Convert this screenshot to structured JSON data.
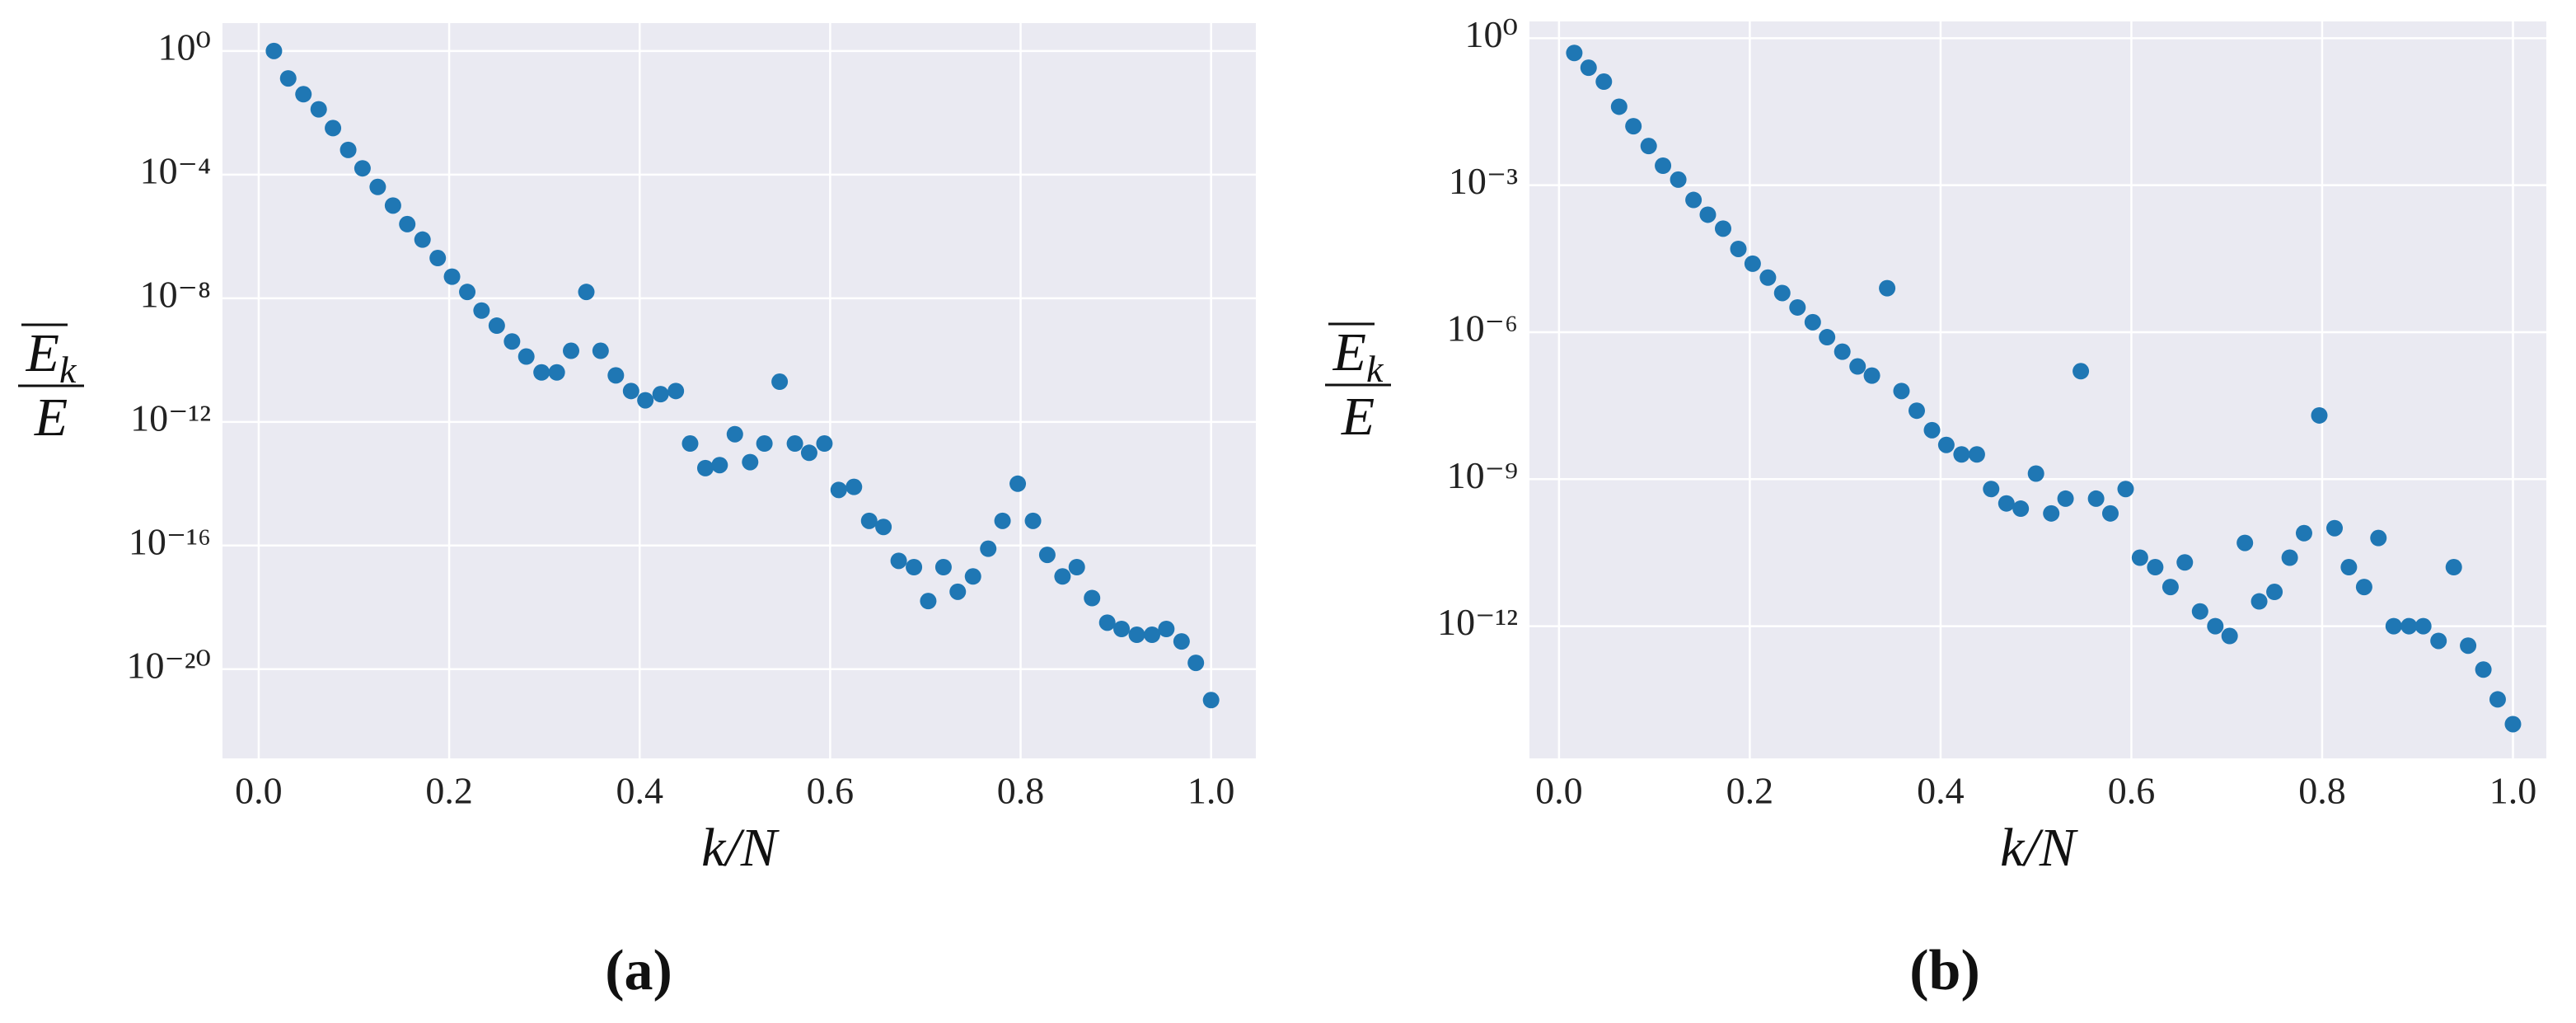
{
  "chart_data": [
    {
      "type": "scatter",
      "caption": "(a)",
      "xlabel": "k/N",
      "ylabel": {
        "numerator": "E",
        "subscript": "k",
        "denominator": "E"
      },
      "log_y": true,
      "grid": true,
      "color": "#1f77b4",
      "xlim": [
        -0.038,
        1.047
      ],
      "ylim": [
        8,
        1.3e-23
      ],
      "xticks": [
        {
          "value": 0,
          "label": "0.0"
        },
        0.2,
        0.4,
        0.6,
        0.8,
        {
          "value": 1,
          "label": "1.0"
        }
      ],
      "yticks": [
        {
          "value": 1,
          "label": "10⁰"
        },
        {
          "value": 0.0001,
          "label": "10⁻⁴"
        },
        {
          "value": 1e-08,
          "label": "10⁻⁸"
        },
        {
          "value": 1e-12,
          "label": "10⁻¹²"
        },
        {
          "value": 1e-16,
          "label": "10⁻¹⁶"
        },
        {
          "value": 1e-20,
          "label": "10⁻²⁰"
        }
      ],
      "x": [
        0.016,
        0.031,
        0.047,
        0.063,
        0.078,
        0.094,
        0.109,
        0.125,
        0.141,
        0.156,
        0.172,
        0.188,
        0.203,
        0.219,
        0.234,
        0.25,
        0.266,
        0.281,
        0.297,
        0.313,
        0.328,
        0.344,
        0.359,
        0.375,
        0.391,
        0.406,
        0.422,
        0.438,
        0.453,
        0.469,
        0.484,
        0.5,
        0.516,
        0.531,
        0.547,
        0.563,
        0.578,
        0.594,
        0.609,
        0.625,
        0.641,
        0.656,
        0.672,
        0.688,
        0.703,
        0.719,
        0.734,
        0.75,
        0.766,
        0.781,
        0.797,
        0.813,
        0.828,
        0.844,
        0.859,
        0.875,
        0.891,
        0.906,
        0.922,
        0.938,
        0.953,
        0.969,
        0.984,
        1.0
      ],
      "values": [
        1,
        0.13,
        0.04,
        0.013,
        0.0032,
        0.00063,
        0.00016,
        4e-05,
        1e-05,
        2.5e-06,
        7.9e-07,
        2e-07,
        5e-08,
        1.6e-08,
        4e-09,
        1.3e-09,
        4e-10,
        1.3e-10,
        4e-11,
        4e-11,
        2e-10,
        1.6e-08,
        2e-10,
        3.2e-11,
        1e-11,
        5e-12,
        7.9e-12,
        1e-11,
        2e-13,
        3.2e-14,
        4e-14,
        4e-13,
        5e-14,
        2e-13,
        2e-11,
        2e-13,
        1e-13,
        2e-13,
        6.3e-15,
        7.9e-15,
        6.3e-16,
        4e-16,
        3.2e-17,
        2e-17,
        1.6e-18,
        2e-17,
        3.2e-18,
        1e-17,
        7.9e-17,
        6.3e-16,
        1e-14,
        6.3e-16,
        5e-17,
        1e-17,
        2e-17,
        2e-18,
        3.2e-19,
        2e-19,
        1.3e-19,
        1.3e-19,
        2e-19,
        7.9e-20,
        1.6e-20,
        1e-21
      ]
    },
    {
      "type": "scatter",
      "caption": "(b)",
      "xlabel": "k/N",
      "ylabel": {
        "numerator": "E",
        "subscript": "k",
        "denominator": "E"
      },
      "log_y": true,
      "grid": true,
      "color": "#1f77b4",
      "xlim": [
        -0.031,
        1.035
      ],
      "ylim": [
        2.2,
        2e-15
      ],
      "xticks": [
        {
          "value": 0,
          "label": "0.0"
        },
        0.2,
        0.4,
        0.6,
        0.8,
        {
          "value": 1,
          "label": "1.0"
        }
      ],
      "yticks": [
        {
          "value": 1,
          "label": "10⁰"
        },
        {
          "value": 0.001,
          "label": "10⁻³"
        },
        {
          "value": 1e-06,
          "label": "10⁻⁶"
        },
        {
          "value": 1e-09,
          "label": "10⁻⁹"
        },
        {
          "value": 1e-12,
          "label": "10⁻¹²"
        }
      ],
      "x": [
        0.016,
        0.031,
        0.047,
        0.063,
        0.078,
        0.094,
        0.109,
        0.125,
        0.141,
        0.156,
        0.172,
        0.188,
        0.203,
        0.219,
        0.234,
        0.25,
        0.266,
        0.281,
        0.297,
        0.313,
        0.328,
        0.344,
        0.359,
        0.375,
        0.391,
        0.406,
        0.422,
        0.438,
        0.453,
        0.469,
        0.484,
        0.5,
        0.516,
        0.531,
        0.547,
        0.563,
        0.578,
        0.594,
        0.609,
        0.625,
        0.641,
        0.656,
        0.672,
        0.688,
        0.703,
        0.719,
        0.734,
        0.75,
        0.766,
        0.781,
        0.797,
        0.813,
        0.828,
        0.844,
        0.859,
        0.875,
        0.891,
        0.906,
        0.922,
        0.938,
        0.953,
        0.969,
        0.984,
        1.0
      ],
      "values": [
        0.5,
        0.25,
        0.13,
        0.04,
        0.016,
        0.0063,
        0.0025,
        0.0013,
        0.0005,
        0.00025,
        0.00013,
        5e-05,
        2.5e-05,
        1.3e-05,
        6.3e-06,
        3.2e-06,
        1.6e-06,
        7.9e-07,
        4e-07,
        2e-07,
        1.3e-07,
        7.9e-06,
        6.3e-08,
        2.5e-08,
        1e-08,
        5e-09,
        3.2e-09,
        3.2e-09,
        6.3e-10,
        3.2e-10,
        2.5e-10,
        1.3e-09,
        2e-10,
        4e-10,
        1.6e-07,
        4e-10,
        2e-10,
        6.3e-10,
        2.5e-11,
        1.6e-11,
        6.3e-12,
        2e-11,
        2e-12,
        1e-12,
        6.3e-13,
        5e-11,
        3.2e-12,
        5e-12,
        2.5e-11,
        7.9e-11,
        2e-08,
        1e-10,
        1.6e-11,
        6.3e-12,
        6.3e-11,
        1e-12,
        1e-12,
        1e-12,
        5e-13,
        1.6e-11,
        4e-13,
        1.3e-13,
        3.2e-14,
        1e-14
      ]
    }
  ]
}
